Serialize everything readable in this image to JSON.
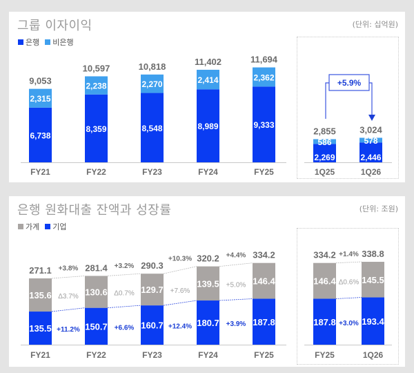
{
  "colors": {
    "bank": "#0a3cf2",
    "nonbank": "#3fa0ee",
    "household": "#a9a5a3",
    "corporate": "#0a3cf2",
    "label_grey": "#6b6b6b",
    "growth_blue": "#1b3fd6"
  },
  "chart_data": [
    {
      "type": "bar",
      "stacked": true,
      "title": "그룹 이자이익",
      "unit": "(단위: 십억원)",
      "categories": [
        "FY21",
        "FY22",
        "FY23",
        "FY24",
        "FY25"
      ],
      "series": [
        {
          "name": "은행",
          "values": [
            6738,
            8359,
            8548,
            8989,
            9333
          ],
          "labels": [
            "6,738",
            "8,359",
            "8,548",
            "8,989",
            "9,333"
          ]
        },
        {
          "name": "비은행",
          "values": [
            2315,
            2238,
            2270,
            2414,
            2362
          ],
          "labels": [
            "2,315",
            "2,238",
            "2,270",
            "2,414",
            "2,362"
          ]
        }
      ],
      "totals": [
        "9,053",
        "10,597",
        "10,818",
        "11,402",
        "11,694"
      ],
      "inset": {
        "categories": [
          "1Q25",
          "1Q26"
        ],
        "series": [
          {
            "name": "은행",
            "values": [
              2269,
              2446
            ],
            "labels": [
              "2,269",
              "2,446"
            ]
          },
          {
            "name": "비은행",
            "values": [
              586,
              578
            ],
            "labels": [
              "586",
              "578"
            ]
          }
        ],
        "totals": [
          "2,855",
          "3,024"
        ],
        "growth": "+5.9%"
      },
      "legend": [
        "은행",
        "비은행"
      ],
      "legend_position": "top-left"
    },
    {
      "type": "bar",
      "stacked": true,
      "title": "은행 원화대출 잔액과 성장률",
      "unit": "(단위: 조원)",
      "categories": [
        "FY21",
        "FY22",
        "FY23",
        "FY24",
        "FY25"
      ],
      "series": [
        {
          "name": "기업",
          "values": [
            135.5,
            150.7,
            160.7,
            180.7,
            187.8
          ],
          "labels": [
            "135.5",
            "150.7",
            "160.7",
            "180.7",
            "187.8"
          ]
        },
        {
          "name": "가계",
          "values": [
            135.6,
            130.6,
            129.7,
            139.5,
            146.4
          ],
          "labels": [
            "135.6",
            "130.6",
            "129.7",
            "139.5",
            "146.4"
          ]
        }
      ],
      "totals": [
        "271.1",
        "281.4",
        "290.3",
        "320.2",
        "334.2"
      ],
      "growth_total": [
        "+3.8%",
        "+3.2%",
        "+10.3%",
        "+4.4%"
      ],
      "growth_household": [
        "Δ3.7%",
        "Δ0.7%",
        "+7.6%",
        "+5.0%"
      ],
      "growth_corporate": [
        "+11.2%",
        "+6.6%",
        "+12.4%",
        "+3.9%"
      ],
      "inset": {
        "categories": [
          "FY25",
          "1Q26"
        ],
        "series": [
          {
            "name": "기업",
            "values": [
              187.8,
              193.4
            ],
            "labels": [
              "187.8",
              "193.4"
            ]
          },
          {
            "name": "가계",
            "values": [
              146.4,
              145.5
            ],
            "labels": [
              "146.4",
              "145.5"
            ]
          }
        ],
        "totals": [
          "334.2",
          "338.8"
        ],
        "growth_total": "+1.4%",
        "growth_household": "Δ0.6%",
        "growth_corporate": "+3.0%"
      },
      "legend": [
        "가계",
        "기업"
      ],
      "legend_position": "top-left"
    }
  ]
}
